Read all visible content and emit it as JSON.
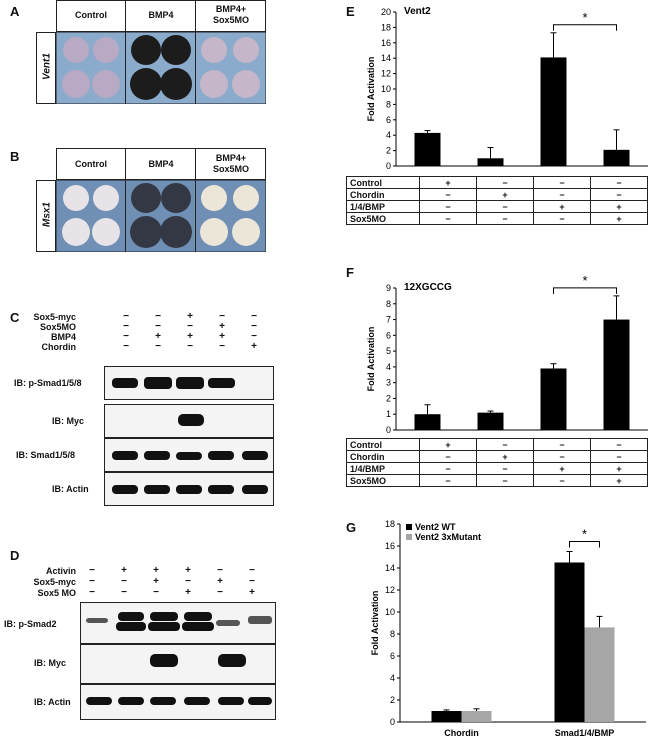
{
  "panels": {
    "A": {
      "label": "A",
      "gene": "Vent1",
      "columns": [
        "Control",
        "BMP4",
        "BMP4+\nSox5MO"
      ]
    },
    "B": {
      "label": "B",
      "gene": "Msx1",
      "columns": [
        "Control",
        "BMP4",
        "BMP4+\nSox5MO"
      ]
    },
    "C": {
      "label": "C",
      "conditions": [
        {
          "name": "Sox5-myc",
          "values": [
            "−",
            "−",
            "+",
            "−",
            "−"
          ]
        },
        {
          "name": "Sox5MO",
          "values": [
            "−",
            "−",
            "−",
            "+",
            "−"
          ]
        },
        {
          "name": "BMP4",
          "values": [
            "−",
            "+",
            "+",
            "+",
            "−"
          ]
        },
        {
          "name": "Chordin",
          "values": [
            "−",
            "−",
            "−",
            "−",
            "+"
          ]
        }
      ],
      "blots": [
        "IB: p-Smad1/5/8",
        "IB: Myc",
        "IB: Smad1/5/8",
        "IB: Actin"
      ]
    },
    "D": {
      "label": "D",
      "conditions": [
        {
          "name": "Activin",
          "values": [
            "−",
            "+",
            "+",
            "+",
            "−",
            "−"
          ]
        },
        {
          "name": "Sox5-myc",
          "values": [
            "−",
            "−",
            "+",
            "−",
            "+",
            "−"
          ]
        },
        {
          "name": "Sox5 MO",
          "values": [
            "−",
            "−",
            "−",
            "+",
            "−",
            "+"
          ]
        }
      ],
      "blots": [
        "IB: p-Smad2",
        "IB: Myc",
        "IB: Actin"
      ]
    },
    "E": {
      "label": "E",
      "table_rows": [
        {
          "name": "Control",
          "values": [
            "+",
            "−",
            "−",
            "−"
          ]
        },
        {
          "name": "Chordin",
          "values": [
            "−",
            "+",
            "−",
            "−"
          ]
        },
        {
          "name": "1/4/BMP",
          "values": [
            "−",
            "−",
            "+",
            "+"
          ]
        },
        {
          "name": "Sox5MO",
          "values": [
            "−",
            "−",
            "−",
            "+"
          ]
        }
      ]
    },
    "F": {
      "label": "F",
      "table_rows": [
        {
          "name": "Control",
          "values": [
            "+",
            "−",
            "−",
            "−"
          ]
        },
        {
          "name": "Chordin",
          "values": [
            "−",
            "+",
            "−",
            "−"
          ]
        },
        {
          "name": "1/4/BMP",
          "values": [
            "−",
            "−",
            "+",
            "+"
          ]
        },
        {
          "name": "Sox5MO",
          "values": [
            "−",
            "−",
            "−",
            "+"
          ]
        }
      ]
    },
    "G": {
      "label": "G"
    }
  },
  "chart_data": [
    {
      "panel": "E",
      "type": "bar",
      "title": "Vent2",
      "ylabel": "Fold Activation",
      "ylim": [
        0,
        20
      ],
      "yticks": [
        0,
        2,
        4,
        6,
        8,
        10,
        12,
        14,
        16,
        18,
        20
      ],
      "values": [
        4.3,
        1.0,
        14.1,
        2.1
      ],
      "errors": [
        0.3,
        1.4,
        3.2,
        2.6
      ],
      "significance": {
        "between": [
          2,
          3
        ],
        "label": "*"
      }
    },
    {
      "panel": "F",
      "type": "bar",
      "title": "12XGCCG",
      "ylabel": "Fold Activation",
      "ylim": [
        0,
        9
      ],
      "yticks": [
        0,
        1,
        2,
        3,
        4,
        5,
        6,
        7,
        8,
        9
      ],
      "values": [
        1.0,
        1.1,
        3.9,
        7.0
      ],
      "errors": [
        0.6,
        0.1,
        0.3,
        1.5
      ],
      "significance": {
        "between": [
          2,
          3
        ],
        "label": "*"
      }
    },
    {
      "panel": "G",
      "type": "bar",
      "ylabel": "Fold Activation",
      "ylim": [
        0,
        18
      ],
      "yticks": [
        0,
        2,
        4,
        6,
        8,
        10,
        12,
        14,
        16,
        18
      ],
      "categories": [
        "Chordin",
        "Smad1/4/BMP"
      ],
      "series": [
        {
          "name": "Vent2 WT",
          "color": "#000000",
          "values": [
            1.0,
            14.5
          ],
          "errors": [
            0.1,
            1.0
          ]
        },
        {
          "name": "Vent2 3xMutant",
          "color": "#a6a6a6",
          "values": [
            1.0,
            8.6
          ],
          "errors": [
            0.2,
            1.0
          ]
        }
      ],
      "significance": {
        "category": 1,
        "label": "*"
      }
    }
  ]
}
